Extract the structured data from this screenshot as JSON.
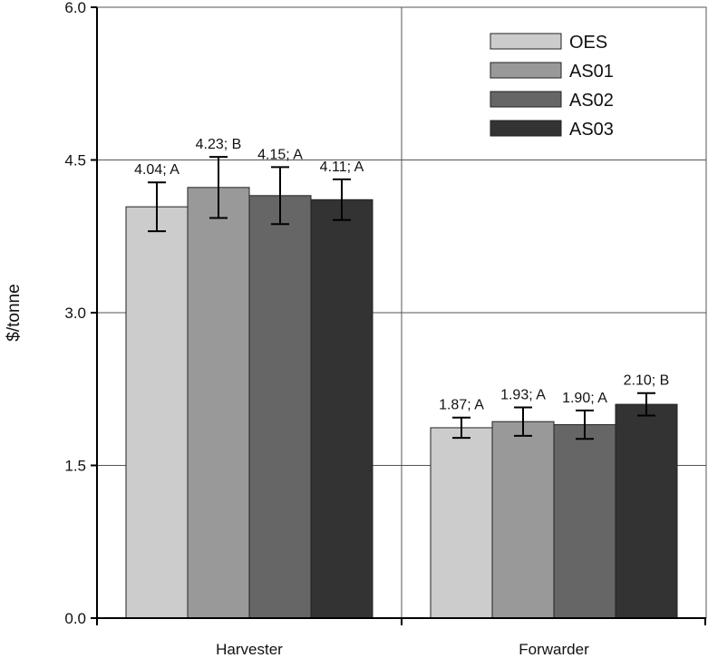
{
  "chart_data": {
    "type": "bar",
    "ylabel": "$/tonne",
    "xlabel": "",
    "ylim": [
      0,
      6
    ],
    "yticks": [
      "0.0",
      "1.5",
      "3.0",
      "4.5",
      "6.0"
    ],
    "categories": [
      "Harvester",
      "Forwarder"
    ],
    "grid": true,
    "legend_position": "top-right",
    "series": [
      {
        "name": "OES",
        "color": "#cccccc",
        "values": [
          4.04,
          1.87
        ],
        "err": [
          0.24,
          0.1
        ],
        "labels": [
          "4.04; A",
          "1.87; A"
        ]
      },
      {
        "name": "AS01",
        "color": "#999999",
        "values": [
          4.23,
          1.93
        ],
        "err": [
          0.3,
          0.14
        ],
        "labels": [
          "4.23; B",
          "1.93; A"
        ]
      },
      {
        "name": "AS02",
        "color": "#666666",
        "values": [
          4.15,
          1.9
        ],
        "err": [
          0.28,
          0.14
        ],
        "labels": [
          "4.15; A",
          "1.90; A"
        ]
      },
      {
        "name": "AS03",
        "color": "#333333",
        "values": [
          4.11,
          2.1
        ],
        "err": [
          0.2,
          0.11
        ],
        "labels": [
          "4.11; A",
          "2.10; B"
        ]
      }
    ]
  }
}
